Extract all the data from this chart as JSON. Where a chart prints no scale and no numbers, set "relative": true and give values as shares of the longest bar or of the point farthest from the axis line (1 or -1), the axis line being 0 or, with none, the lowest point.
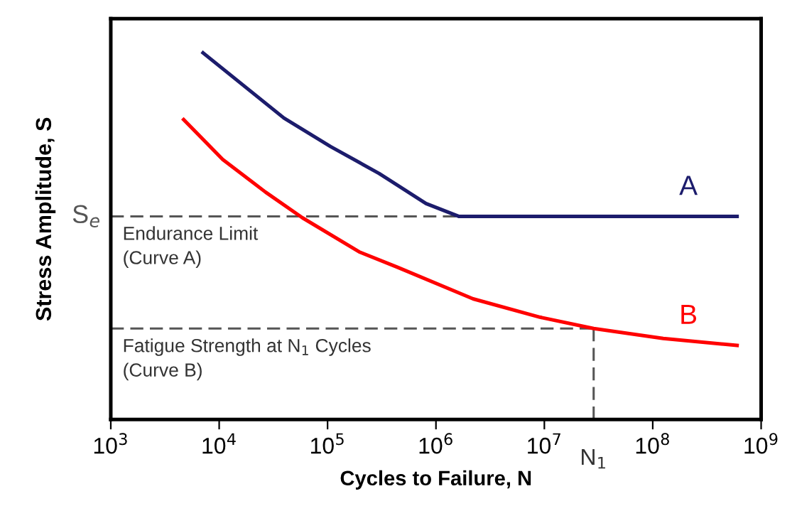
{
  "chart_data": {
    "type": "line",
    "xlabel": "Cycles to Failure, N",
    "ylabel": "Stress Amplitude, S",
    "relative": true,
    "log": "x",
    "xlim": [
      1000,
      1000000000
    ],
    "xticks": [
      {
        "value": 1000,
        "label": "10$^{3}$"
      },
      {
        "value": 10000,
        "label": "10$^{4}$"
      },
      {
        "value": 100000,
        "label": "10$^{5}$"
      },
      {
        "value": 1000000,
        "label": "10$^{6}$"
      },
      {
        "value": 10000000,
        "label": "10$^{7}$"
      },
      {
        "value": 100000000,
        "label": "10$^{8}$"
      },
      {
        "value": 1000000000,
        "label": "10$^{9}$"
      }
    ],
    "series": [
      {
        "name": "A",
        "color": "#1c1c6c",
        "x": [
          7100,
          39600,
          107000,
          299000,
          809000,
          1620000,
          600000000
        ],
        "values": [
          1.0,
          0.822,
          0.744,
          0.671,
          0.589,
          0.554,
          0.554
        ]
      },
      {
        "name": "B",
        "color": "#ff0000",
        "x": [
          4700,
          10800,
          26800,
          58700,
          196000,
          443000,
          2200000,
          9100000,
          28500000,
          125000000,
          600000000
        ],
        "values": [
          0.818,
          0.709,
          0.62,
          0.55,
          0.457,
          0.415,
          0.329,
          0.279,
          0.248,
          0.221,
          0.202
        ]
      }
    ],
    "ref_lines": [
      {
        "axis": "y",
        "value": 0.554,
        "label": "S$_{e}$",
        "color": "#555555",
        "line_style": "dashed"
      },
      {
        "axis": "y",
        "value": 0.248,
        "color": "#555555",
        "line_style": "dashed"
      },
      {
        "axis": "x",
        "value": 28500000,
        "label": "N$_{1}$",
        "color": "#555555",
        "line_style": "dashed"
      }
    ],
    "annotations": [
      "Endurance Limit\n(Curve A)",
      "Fatigue Strength at N$_{1}$ Cycles\n(Curve B)"
    ],
    "grid": false,
    "legend": false,
    "marker": "none",
    "line_style": "solid"
  }
}
